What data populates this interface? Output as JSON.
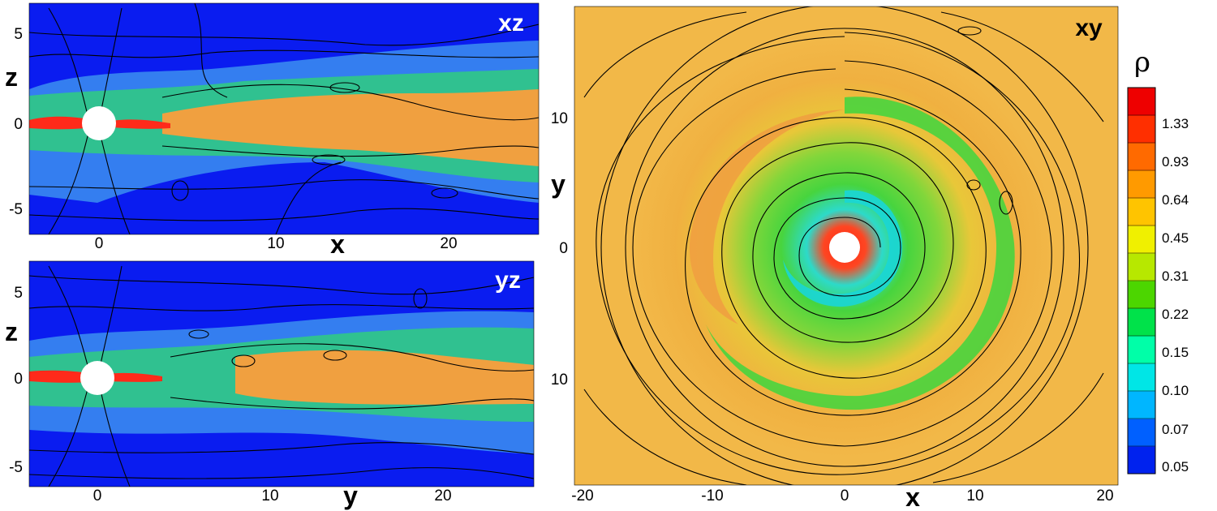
{
  "chart_data": [
    {
      "type": "heatmap",
      "panel_label": "xz",
      "xlabel": "x",
      "ylabel": "z",
      "x_ticks": [
        "0",
        "10",
        "20"
      ],
      "y_ticks": [
        "5",
        "0",
        "-5"
      ],
      "xlim": [
        -4,
        25.5
      ],
      "ylim": [
        -6.5,
        6.8
      ],
      "obstacle": {
        "center": [
          0,
          0
        ],
        "radius": 1
      },
      "streamlines": true,
      "colormap_field": "rho"
    },
    {
      "type": "heatmap",
      "panel_label": "yz",
      "xlabel": "y",
      "ylabel": "z",
      "x_ticks": [
        "0",
        "10",
        "20"
      ],
      "y_ticks": [
        "5",
        "0",
        "-5"
      ],
      "xlim": [
        -4,
        25.5
      ],
      "ylim": [
        -6.5,
        6.8
      ],
      "obstacle": {
        "center": [
          0,
          0
        ],
        "radius": 1
      },
      "streamlines": true,
      "colormap_field": "rho"
    },
    {
      "type": "heatmap",
      "panel_label": "xy",
      "xlabel": "x",
      "ylabel": "y",
      "x_ticks": [
        "-20",
        "-10",
        "0",
        "10",
        "20"
      ],
      "y_ticks": [
        "10",
        "0",
        "10"
      ],
      "xlim": [
        -20.7,
        20.7
      ],
      "ylim": [
        -18,
        18
      ],
      "obstacle": {
        "center": [
          0,
          0
        ],
        "radius": 1
      },
      "streamlines": true,
      "colormap_field": "rho"
    }
  ],
  "colorbar": {
    "title": "ρ",
    "ticks": [
      "1.33",
      "0.93",
      "0.64",
      "0.45",
      "0.31",
      "0.22",
      "0.15",
      "0.10",
      "0.07",
      "0.05"
    ],
    "colors_bottom_to_top": [
      "#0022ee",
      "#0060ff",
      "#00b6ff",
      "#00e6e6",
      "#00ffa8",
      "#00e24a",
      "#4cd600",
      "#b7e800",
      "#f0f000",
      "#ffc400",
      "#ff9a00",
      "#ff6a00",
      "#ff2f00",
      "#ee0000"
    ]
  },
  "colors": {
    "background_low": "#0a1cf0",
    "mid": "#3ecf3e",
    "high": "#f2a23a",
    "peak": "#ff2a1a",
    "panel_tag": "#ffffff",
    "xy_tag": "#000000"
  }
}
